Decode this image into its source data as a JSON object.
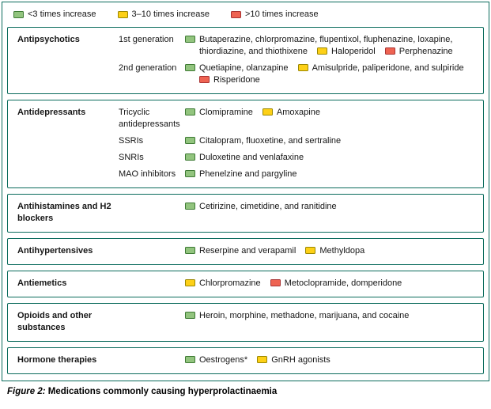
{
  "colors": {
    "frame_border": "#0a6b5c",
    "green_fill": "#92c47e",
    "green_border": "#3d7a33",
    "yellow_fill": "#fdd017",
    "yellow_border": "#9a8700",
    "red_fill": "#ee6352",
    "red_border": "#a83232"
  },
  "legend": [
    {
      "level": "green",
      "label": "<3 times increase"
    },
    {
      "level": "yellow",
      "label": "3–10 times increase"
    },
    {
      "level": "red",
      "label": ">10 times increase"
    }
  ],
  "sections": [
    {
      "title": "Antipsychotics",
      "rows": [
        {
          "subcategory": "1st generation",
          "entries": [
            {
              "level": "green",
              "text": "Butaperazine, chlorpromazine, flupentixol, fluphenazine, loxapine, thiordiazine, and thiothixene"
            },
            {
              "level": "yellow",
              "text": "Haloperidol"
            },
            {
              "level": "red",
              "text": "Perphenazine"
            }
          ]
        },
        {
          "subcategory": "2nd generation",
          "entries": [
            {
              "level": "green",
              "text": "Quetiapine, olanzapine"
            },
            {
              "level": "yellow",
              "text": "Amisulpride, paliperidone, and sulpiride"
            },
            {
              "level": "red",
              "text": "Risperidone"
            }
          ]
        }
      ]
    },
    {
      "title": "Antidepressants",
      "rows": [
        {
          "subcategory": "Tricyclic antidepressants",
          "entries": [
            {
              "level": "green",
              "text": "Clomipramine"
            },
            {
              "level": "yellow",
              "text": "Amoxapine"
            }
          ]
        },
        {
          "subcategory": "SSRIs",
          "entries": [
            {
              "level": "green",
              "text": "Citalopram, fluoxetine, and sertraline"
            }
          ]
        },
        {
          "subcategory": "SNRIs",
          "entries": [
            {
              "level": "green",
              "text": "Duloxetine and venlafaxine"
            }
          ]
        },
        {
          "subcategory": "MAO inhibitors",
          "entries": [
            {
              "level": "green",
              "text": "Phenelzine and pargyline"
            }
          ]
        }
      ]
    },
    {
      "title": "Antihistamines and H2 blockers",
      "rows": [
        {
          "subcategory": "",
          "entries": [
            {
              "level": "green",
              "text": "Cetirizine, cimetidine, and ranitidine"
            }
          ]
        }
      ]
    },
    {
      "title": "Antihypertensives",
      "rows": [
        {
          "subcategory": "",
          "entries": [
            {
              "level": "green",
              "text": "Reserpine and verapamil"
            },
            {
              "level": "yellow",
              "text": "Methyldopa"
            }
          ]
        }
      ]
    },
    {
      "title": "Antiemetics",
      "rows": [
        {
          "subcategory": "",
          "entries": [
            {
              "level": "yellow",
              "text": "Chlorpromazine"
            },
            {
              "level": "red",
              "text": "Metoclopramide, domperidone"
            }
          ]
        }
      ]
    },
    {
      "title": "Opioids and other substances",
      "rows": [
        {
          "subcategory": "",
          "entries": [
            {
              "level": "green",
              "text": "Heroin, morphine, methadone, marijuana, and cocaine"
            }
          ]
        }
      ]
    },
    {
      "title": "Hormone therapies",
      "rows": [
        {
          "subcategory": "",
          "entries": [
            {
              "level": "green",
              "text": "Oestrogens*"
            },
            {
              "level": "yellow",
              "text": "GnRH agonists"
            }
          ]
        }
      ]
    }
  ],
  "caption": {
    "label": "Figure 2:",
    "text": "Medications commonly causing hyperprolactinaemia"
  }
}
